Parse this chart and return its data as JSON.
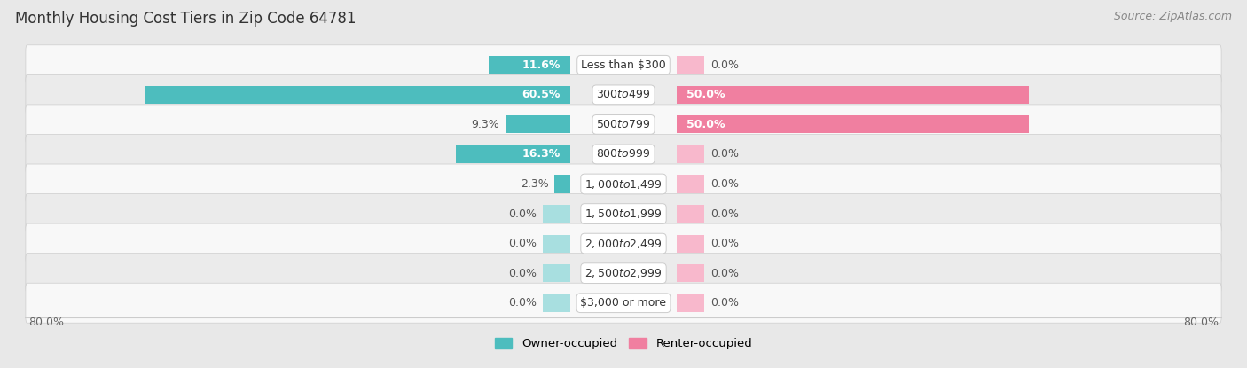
{
  "title": "Monthly Housing Cost Tiers in Zip Code 64781",
  "source": "Source: ZipAtlas.com",
  "categories": [
    "Less than $300",
    "$300 to $499",
    "$500 to $799",
    "$800 to $999",
    "$1,000 to $1,499",
    "$1,500 to $1,999",
    "$2,000 to $2,499",
    "$2,500 to $2,999",
    "$3,000 or more"
  ],
  "owner_values": [
    11.6,
    60.5,
    9.3,
    16.3,
    2.3,
    0.0,
    0.0,
    0.0,
    0.0
  ],
  "renter_values": [
    0.0,
    50.0,
    50.0,
    0.0,
    0.0,
    0.0,
    0.0,
    0.0,
    0.0
  ],
  "owner_color": "#4dbdbe",
  "renter_color": "#f07fa0",
  "owner_color_light": "#a8dfe0",
  "renter_color_light": "#f8b8cc",
  "label_color_dark": "#555555",
  "label_color_white": "#ffffff",
  "bg_color": "#e8e8e8",
  "row_bg_even": "#f8f8f8",
  "row_bg_odd": "#ebebeb",
  "axis_max": 80.0,
  "min_bar": 4.0,
  "title_fontsize": 12,
  "label_fontsize": 9,
  "category_fontsize": 9,
  "source_fontsize": 9
}
